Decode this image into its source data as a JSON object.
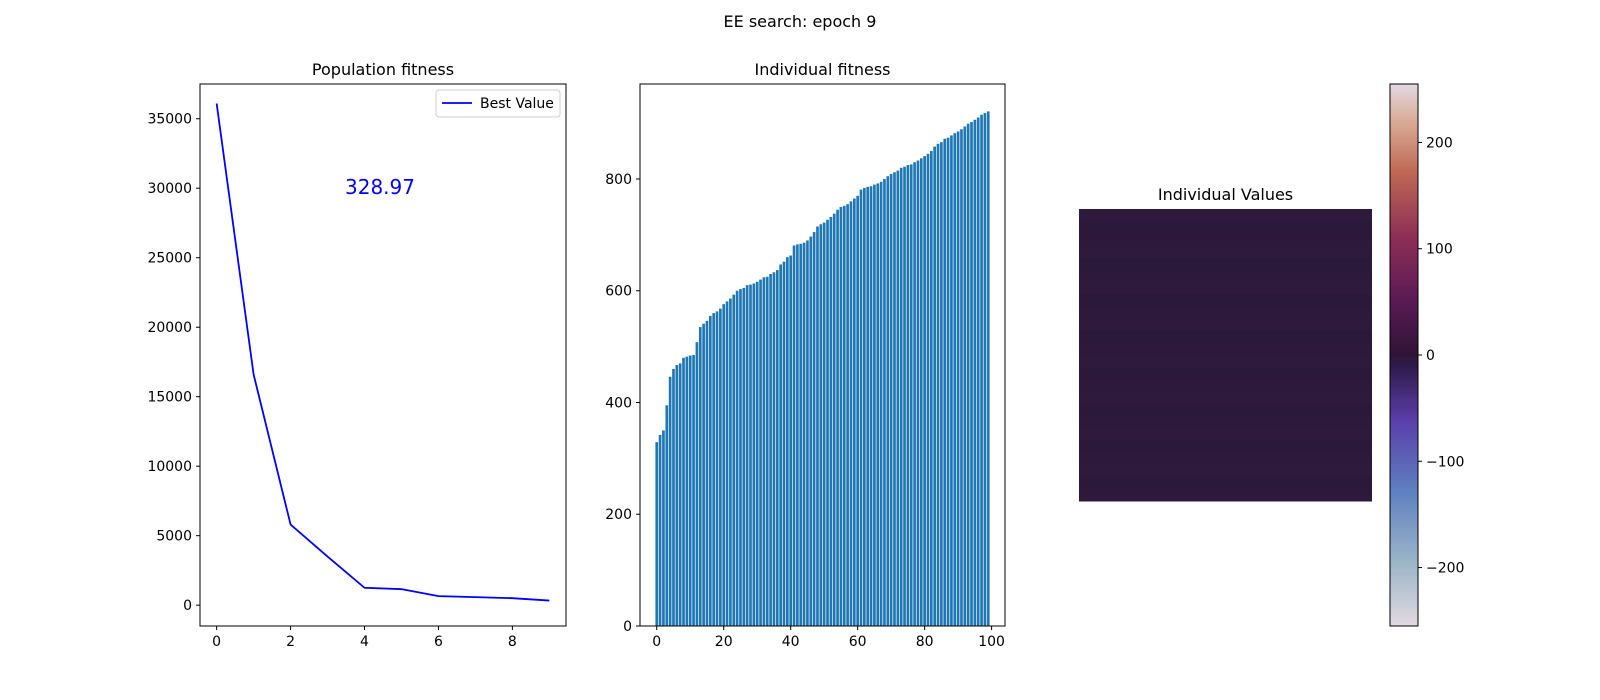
{
  "figure": {
    "suptitle": "EE search: epoch 9"
  },
  "chart_data": [
    {
      "type": "line",
      "title": "Population fitness",
      "xlabel": "",
      "ylabel": "",
      "xlim": [
        -0.45,
        9.45
      ],
      "ylim": [
        -1500,
        37500
      ],
      "x_ticks": [
        0,
        2,
        4,
        6,
        8
      ],
      "y_ticks": [
        0,
        5000,
        10000,
        15000,
        20000,
        25000,
        30000,
        35000
      ],
      "series": [
        {
          "name": "Best Value",
          "color": "#0000ff",
          "x": [
            0,
            1,
            2,
            3,
            4,
            5,
            6,
            7,
            8,
            9
          ],
          "values": [
            36100,
            16600,
            5800,
            3500,
            1250,
            1150,
            650,
            580,
            500,
            329
          ]
        }
      ],
      "legend": "top-right",
      "annotation": {
        "text": "328.97",
        "color": "#0000ff"
      }
    },
    {
      "type": "bar",
      "title": "Individual fitness",
      "xlabel": "",
      "ylabel": "",
      "xlim": [
        -5,
        104
      ],
      "ylim": [
        0,
        970
      ],
      "x_ticks": [
        0,
        20,
        40,
        60,
        80,
        100
      ],
      "y_ticks": [
        0,
        200,
        400,
        600,
        800
      ],
      "bar_color": "#1f77b4",
      "values": [
        329,
        342,
        350,
        395,
        446,
        460,
        467,
        470,
        480,
        482,
        484,
        485,
        508,
        535,
        541,
        546,
        555,
        560,
        563,
        568,
        576,
        581,
        586,
        593,
        600,
        603,
        605,
        610,
        611,
        613,
        616,
        620,
        624,
        625,
        630,
        633,
        637,
        647,
        652,
        660,
        663,
        681,
        683,
        684,
        686,
        690,
        697,
        705,
        715,
        719,
        722,
        727,
        732,
        738,
        745,
        750,
        752,
        755,
        760,
        765,
        770,
        781,
        784,
        786,
        787,
        790,
        792,
        795,
        800,
        805,
        809,
        812,
        815,
        820,
        822,
        825,
        826,
        830,
        833,
        837,
        841,
        845,
        850,
        858,
        863,
        866,
        872,
        874,
        878,
        882,
        885,
        889,
        894,
        899,
        902,
        906,
        910,
        915,
        918,
        921
      ]
    },
    {
      "type": "heatmap",
      "title": "Individual Values",
      "colormap": "twilight",
      "vmin": -255,
      "vmax": 255,
      "colorbar_ticks": [
        200,
        100,
        0,
        -100,
        -200
      ],
      "colorbar_tick_labels": [
        "200",
        "100",
        "0",
        "−100",
        "−200"
      ],
      "fill_color": "#2c1a3c"
    }
  ]
}
